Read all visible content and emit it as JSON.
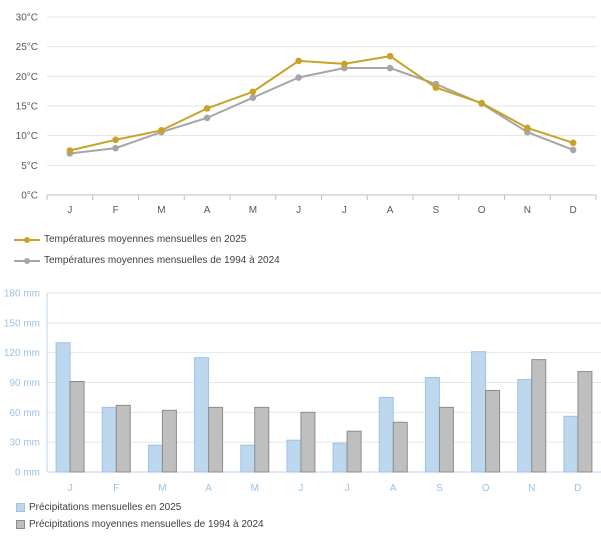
{
  "chart_data": [
    {
      "type": "line",
      "categories": [
        "J",
        "F",
        "M",
        "A",
        "M",
        "J",
        "J",
        "A",
        "S",
        "O",
        "N",
        "D"
      ],
      "y_tick_labels": [
        "0°C",
        "5°C",
        "10°C",
        "15°C",
        "20°C",
        "25°C",
        "30°C"
      ],
      "ylim": [
        0,
        30
      ],
      "grid": true,
      "legend_position": "bottom-left",
      "series": [
        {
          "name": "Températures moyennes mensuelles en 2025",
          "color": "#C9A227",
          "values": [
            7.5,
            9.3,
            10.9,
            14.6,
            17.4,
            22.6,
            22.1,
            23.4,
            18.1,
            15.5,
            11.3,
            8.8
          ]
        },
        {
          "name": "Températures moyennes mensuelles de 1994 à 2024",
          "color": "#A6A6A6",
          "values": [
            7.0,
            7.9,
            10.6,
            13.0,
            16.4,
            19.8,
            21.4,
            21.4,
            18.7,
            15.4,
            10.6,
            7.6
          ]
        }
      ]
    },
    {
      "type": "bar",
      "categories": [
        "J",
        "F",
        "M",
        "A",
        "M",
        "J",
        "J",
        "A",
        "S",
        "O",
        "N",
        "D"
      ],
      "y_tick_labels": [
        "0 mm",
        "30 mm",
        "60 mm",
        "90 mm",
        "120 mm",
        "150 mm",
        "180 mm"
      ],
      "ylim": [
        0,
        180
      ],
      "grid": true,
      "legend_position": "bottom-left",
      "series": [
        {
          "name": "Précipitations mensuelles en 2025",
          "color": "#BDD7EE",
          "values": [
            130,
            65,
            27,
            115,
            27,
            32,
            29,
            75,
            95,
            121,
            93,
            56
          ]
        },
        {
          "name": "Précipitations moyennes mensuelles de 1994 à 2024",
          "color": "#BFBFBF",
          "values": [
            91,
            67,
            62,
            65,
            65,
            60,
            41,
            50,
            65,
            82,
            113,
            101
          ]
        }
      ]
    }
  ]
}
